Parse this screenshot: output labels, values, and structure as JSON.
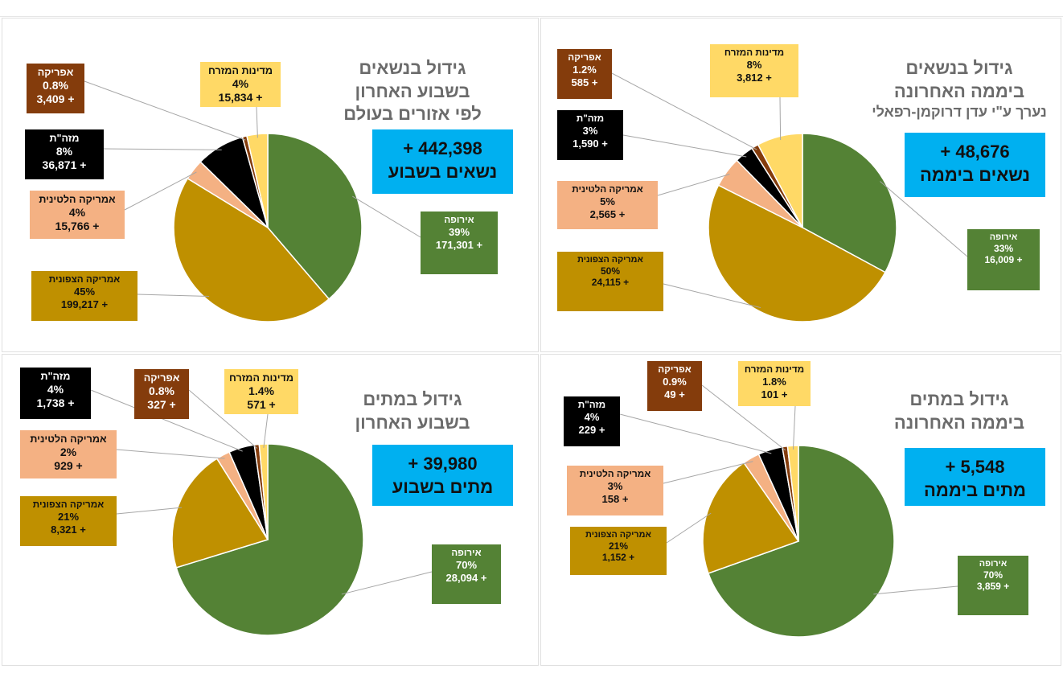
{
  "chart_data": [
    {
      "type": "pie",
      "title": [
        "גידול בנשאים",
        "ביממה האחרונה"
      ],
      "subtitle": "נערך ע\"י עדן דרוקמן-רפאלי",
      "total_value": "48,676 +",
      "total_label": "נשאים ביממה",
      "slices": [
        {
          "name": "אירופה",
          "percent": 33,
          "percent_label": "33%",
          "value": 16009,
          "value_label": "+ 16,009",
          "color": "#548235"
        },
        {
          "name": "אמריקה הצפונית",
          "percent": 50,
          "percent_label": "50%",
          "value": 24115,
          "value_label": "+ 24,115",
          "color": "#bf9000"
        },
        {
          "name": "אמריקה הלטינית",
          "percent": 5,
          "percent_label": "5%",
          "value": 2565,
          "value_label": "+ 2,565",
          "color": "#f4b183"
        },
        {
          "name": "מזה\"ת",
          "percent": 3,
          "percent_label": "3%",
          "value": 1590,
          "value_label": "+ 1,590",
          "color": "#000000"
        },
        {
          "name": "אפריקה",
          "percent": 1.2,
          "percent_label": "1.2%",
          "value": 585,
          "value_label": "+ 585",
          "color": "#843c0c"
        },
        {
          "name": "מדינות המזרח",
          "percent": 8,
          "percent_label": "8%",
          "value": 3812,
          "value_label": "+ 3,812",
          "color": "#ffd966"
        }
      ]
    },
    {
      "type": "pie",
      "title": [
        "גידול בנשאים",
        "בשבוע האחרון",
        "לפי אזורים בעולם"
      ],
      "total_value": "442,398 +",
      "total_label": "נשאים בשבוע",
      "slices": [
        {
          "name": "אירופה",
          "percent": 39,
          "percent_label": "39%",
          "value": 171301,
          "value_label": "+ 171,301",
          "color": "#548235"
        },
        {
          "name": "אמריקה הצפונית",
          "percent": 45,
          "percent_label": "45%",
          "value": 199217,
          "value_label": "+ 199,217",
          "color": "#bf9000"
        },
        {
          "name": "אמריקה הלטינית",
          "percent": 4,
          "percent_label": "4%",
          "value": 15766,
          "value_label": "+ 15,766",
          "color": "#f4b183"
        },
        {
          "name": "מזה\"ת",
          "percent": 8,
          "percent_label": "8%",
          "value": 36871,
          "value_label": "+ 36,871",
          "color": "#000000"
        },
        {
          "name": "אפריקה",
          "percent": 0.8,
          "percent_label": "0.8%",
          "value": 3409,
          "value_label": "+ 3,409",
          "color": "#843c0c"
        },
        {
          "name": "מדינות המזרח",
          "percent": 4,
          "percent_label": "4%",
          "value": 15834,
          "value_label": "+ 15,834",
          "color": "#ffd966"
        }
      ]
    },
    {
      "type": "pie",
      "title": [
        "גידול במתים",
        "ביממה האחרונה"
      ],
      "total_value": "5,548 +",
      "total_label": "מתים ביממה",
      "slices": [
        {
          "name": "אירופה",
          "percent": 70,
          "percent_label": "70%",
          "value": 3859,
          "value_label": "+ 3,859",
          "color": "#548235"
        },
        {
          "name": "אמריקה הצפונית",
          "percent": 21,
          "percent_label": "21%",
          "value": 1152,
          "value_label": "+ 1,152",
          "color": "#bf9000"
        },
        {
          "name": "אמריקה הלטינית",
          "percent": 3,
          "percent_label": "3%",
          "value": 158,
          "value_label": "+ 158",
          "color": "#f4b183"
        },
        {
          "name": "מזה\"ת",
          "percent": 4,
          "percent_label": "4%",
          "value": 229,
          "value_label": "+ 229",
          "color": "#000000"
        },
        {
          "name": "אפריקה",
          "percent": 0.9,
          "percent_label": "0.9%",
          "value": 49,
          "value_label": "+ 49",
          "color": "#843c0c"
        },
        {
          "name": "מדינות המזרח",
          "percent": 1.8,
          "percent_label": "1.8%",
          "value": 101,
          "value_label": "+ 101",
          "color": "#ffd966"
        }
      ]
    },
    {
      "type": "pie",
      "title": [
        "גידול במתים",
        "בשבוע האחרון"
      ],
      "total_value": "39,980 +",
      "total_label": "מתים בשבוע",
      "slices": [
        {
          "name": "אירופה",
          "percent": 70,
          "percent_label": "70%",
          "value": 28094,
          "value_label": "+ 28,094",
          "color": "#548235"
        },
        {
          "name": "אמריקה הצפונית",
          "percent": 21,
          "percent_label": "21%",
          "value": 8321,
          "value_label": "+ 8,321",
          "color": "#bf9000"
        },
        {
          "name": "אמריקה הלטינית",
          "percent": 2,
          "percent_label": "2%",
          "value": 929,
          "value_label": "+ 929",
          "color": "#f4b183"
        },
        {
          "name": "מזה\"ת",
          "percent": 4,
          "percent_label": "4%",
          "value": 1738,
          "value_label": "+ 1,738",
          "color": "#000000"
        },
        {
          "name": "אפריקה",
          "percent": 0.8,
          "percent_label": "0.8%",
          "value": 327,
          "value_label": "+ 327",
          "color": "#843c0c"
        },
        {
          "name": "מדינות המזרח",
          "percent": 1.4,
          "percent_label": "1.4%",
          "value": 571,
          "value_label": "+ 571",
          "color": "#ffd966"
        }
      ]
    }
  ]
}
